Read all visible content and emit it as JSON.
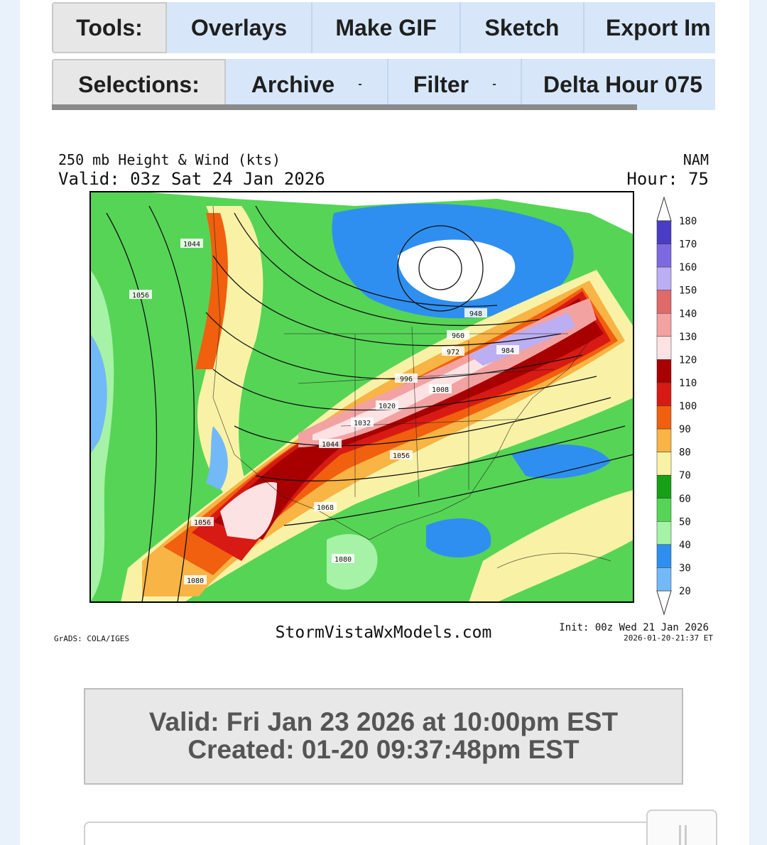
{
  "toolbar": {
    "tools": {
      "label": "Tools:",
      "buttons": [
        "Overlays",
        "Make GIF",
        "Sketch",
        "Export Im"
      ]
    },
    "selections": {
      "label": "Selections:",
      "buttons": [
        "Archive",
        "Filter",
        "Delta Hour 075"
      ]
    }
  },
  "map": {
    "title": "250 mb Height & Wind (kts)",
    "valid": "Valid: 03z Sat 24 Jan 2026",
    "model": "NAM",
    "hour": "Hour: 75",
    "contour_labels": [
      "1044",
      "1056",
      "948",
      "960",
      "972",
      "984",
      "996",
      "1008",
      "1020",
      "1032",
      "1044",
      "1056",
      "1068",
      "1056",
      "1080",
      "1080"
    ],
    "colorbar": {
      "levels": [
        180,
        170,
        160,
        150,
        140,
        130,
        120,
        110,
        100,
        90,
        80,
        70,
        60,
        50,
        40,
        30,
        20
      ],
      "colors": [
        "#4a3cc4",
        "#7d6ae0",
        "#bcaef2",
        "#e06a6a",
        "#f3a2a2",
        "#fde2e4",
        "#a80000",
        "#d81a14",
        "#f0600e",
        "#f8b444",
        "#f9f2a6",
        "#16a016",
        "#56d456",
        "#a6f2a6",
        "#2f8ff0",
        "#72b9f8"
      ]
    },
    "credit": "GrADS: COLA/IGES",
    "site": "StormVistaWxModels.com",
    "init": "Init: 00z Wed 21 Jan 2026",
    "timestamp": "2026-01-20-21:37 ET"
  },
  "info": {
    "valid": "Valid: Fri Jan 23 2026 at 10:00pm EST",
    "created": "Created: 01-20 09:37:48pm EST"
  }
}
